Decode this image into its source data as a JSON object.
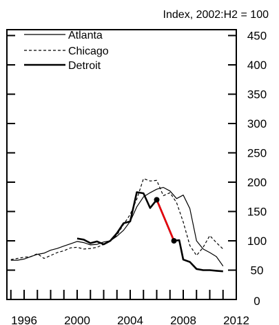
{
  "chart_data": {
    "type": "line",
    "unit_label": "Index, 2002:H2 = 100",
    "xlim": [
      1994.7,
      2012
    ],
    "ylim": [
      0,
      460
    ],
    "x_ticks": [
      1996,
      2000,
      2004,
      2008,
      2012
    ],
    "x_tick_labels": [
      "1996",
      "2000",
      "2004",
      "2008",
      "2012"
    ],
    "y_ticks": [
      0,
      50,
      100,
      150,
      200,
      250,
      300,
      350,
      400,
      450
    ],
    "y_tick_labels": [
      "0",
      "50",
      "100",
      "150",
      "200",
      "250",
      "300",
      "350",
      "400",
      "450"
    ],
    "y_axis_side": "right",
    "x_minor_step": 1,
    "grid": false,
    "legend_position": "top-left",
    "series": [
      {
        "name": "Atlanta",
        "style": "thin-solid",
        "color": "#000000",
        "points": [
          [
            1995.0,
            67
          ],
          [
            1995.5,
            67
          ],
          [
            1996.0,
            69
          ],
          [
            1996.5,
            73
          ],
          [
            1997.0,
            77
          ],
          [
            1997.5,
            79
          ],
          [
            1998.0,
            84
          ],
          [
            1998.5,
            87
          ],
          [
            1999.0,
            91
          ],
          [
            1999.5,
            95
          ],
          [
            2000.0,
            99
          ],
          [
            2000.5,
            97
          ],
          [
            2001.0,
            93
          ],
          [
            2001.5,
            94
          ],
          [
            2002.0,
            98
          ],
          [
            2002.5,
            100
          ],
          [
            2003.0,
            108
          ],
          [
            2003.5,
            118
          ],
          [
            2004.0,
            133
          ],
          [
            2004.5,
            158
          ],
          [
            2005.0,
            175
          ],
          [
            2005.5,
            182
          ],
          [
            2006.0,
            188
          ],
          [
            2006.5,
            191
          ],
          [
            2007.0,
            185
          ],
          [
            2007.5,
            172
          ],
          [
            2008.0,
            178
          ],
          [
            2008.5,
            155
          ],
          [
            2009.0,
            100
          ],
          [
            2009.5,
            86
          ],
          [
            2010.0,
            80
          ],
          [
            2010.5,
            73
          ],
          [
            2011.0,
            57
          ]
        ]
      },
      {
        "name": "Chicago",
        "style": "dashed",
        "color": "#000000",
        "points": [
          [
            1995.0,
            68
          ],
          [
            1995.5,
            70
          ],
          [
            1996.0,
            72
          ],
          [
            1996.5,
            73
          ],
          [
            1997.0,
            78
          ],
          [
            1997.5,
            70
          ],
          [
            1998.0,
            75
          ],
          [
            1998.5,
            80
          ],
          [
            1999.0,
            83
          ],
          [
            1999.5,
            88
          ],
          [
            2000.0,
            89
          ],
          [
            2000.5,
            86
          ],
          [
            2001.0,
            87
          ],
          [
            2001.5,
            89
          ],
          [
            2002.0,
            94
          ],
          [
            2002.5,
            100
          ],
          [
            2003.0,
            110
          ],
          [
            2003.5,
            128
          ],
          [
            2004.0,
            145
          ],
          [
            2004.5,
            171
          ],
          [
            2005.0,
            206
          ],
          [
            2005.5,
            202
          ],
          [
            2006.0,
            203
          ],
          [
            2006.5,
            177
          ],
          [
            2007.0,
            182
          ],
          [
            2007.5,
            165
          ],
          [
            2008.0,
            132
          ],
          [
            2008.5,
            92
          ],
          [
            2009.0,
            75
          ],
          [
            2009.5,
            89
          ],
          [
            2010.0,
            109
          ],
          [
            2010.5,
            97
          ],
          [
            2011.0,
            86
          ]
        ]
      },
      {
        "name": "Detroit",
        "style": "thick-solid",
        "color": "#000000",
        "points": [
          [
            2000.0,
            104
          ],
          [
            2000.5,
            102
          ],
          [
            2001.0,
            96
          ],
          [
            2001.5,
            99
          ],
          [
            2002.0,
            94
          ],
          [
            2002.5,
            100
          ],
          [
            2003.0,
            113
          ],
          [
            2003.5,
            130
          ],
          [
            2004.0,
            133
          ],
          [
            2004.5,
            183
          ],
          [
            2005.0,
            181
          ],
          [
            2005.5,
            156
          ],
          [
            2006.0,
            170
          ],
          [
            2007.3,
            100
          ],
          [
            2007.7,
            101
          ],
          [
            2008.0,
            68
          ],
          [
            2008.5,
            64
          ],
          [
            2009.0,
            52
          ],
          [
            2009.5,
            50
          ],
          [
            2010.0,
            50
          ],
          [
            2010.5,
            49
          ],
          [
            2011.0,
            48
          ]
        ]
      }
    ],
    "annotations": [
      {
        "type": "highlight-segment",
        "series": "Detroit",
        "color": "#e8000b",
        "from": [
          2006.0,
          170
        ],
        "to": [
          2007.3,
          100
        ],
        "endpoint_markers": "dots"
      }
    ]
  }
}
